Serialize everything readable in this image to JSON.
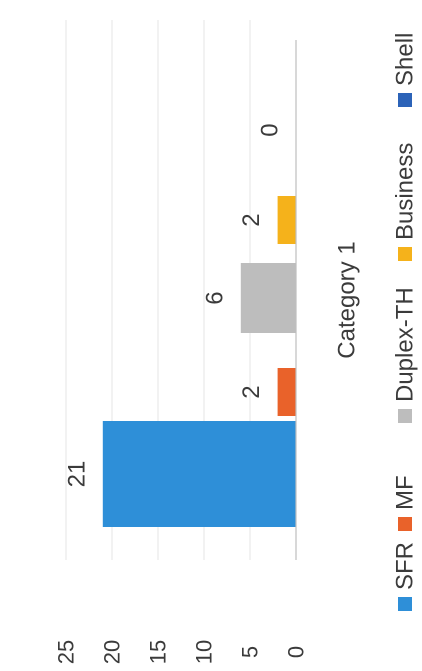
{
  "chart_data": {
    "type": "bar",
    "orientation": "vertical",
    "image_rotation": "rotated 90 degrees counter-clockwise",
    "categories": [
      "Category 1"
    ],
    "series": [
      {
        "name": "SFR",
        "values": [
          21
        ],
        "color": "#2E8FD8"
      },
      {
        "name": "MF",
        "values": [
          2
        ],
        "color": "#E9622A"
      },
      {
        "name": "Duplex-TH",
        "values": [
          6
        ],
        "color": "#BDBDBD"
      },
      {
        "name": "Business",
        "values": [
          2
        ],
        "color": "#F5B21B"
      },
      {
        "name": "Shell",
        "values": [
          0
        ],
        "color": "#2C63B8"
      }
    ],
    "y_ticks": [
      "0",
      "5",
      "10",
      "15",
      "20",
      "25"
    ],
    "ylim": [
      0,
      25
    ],
    "grid": true,
    "legend_position": "bottom",
    "data_labels": true
  }
}
